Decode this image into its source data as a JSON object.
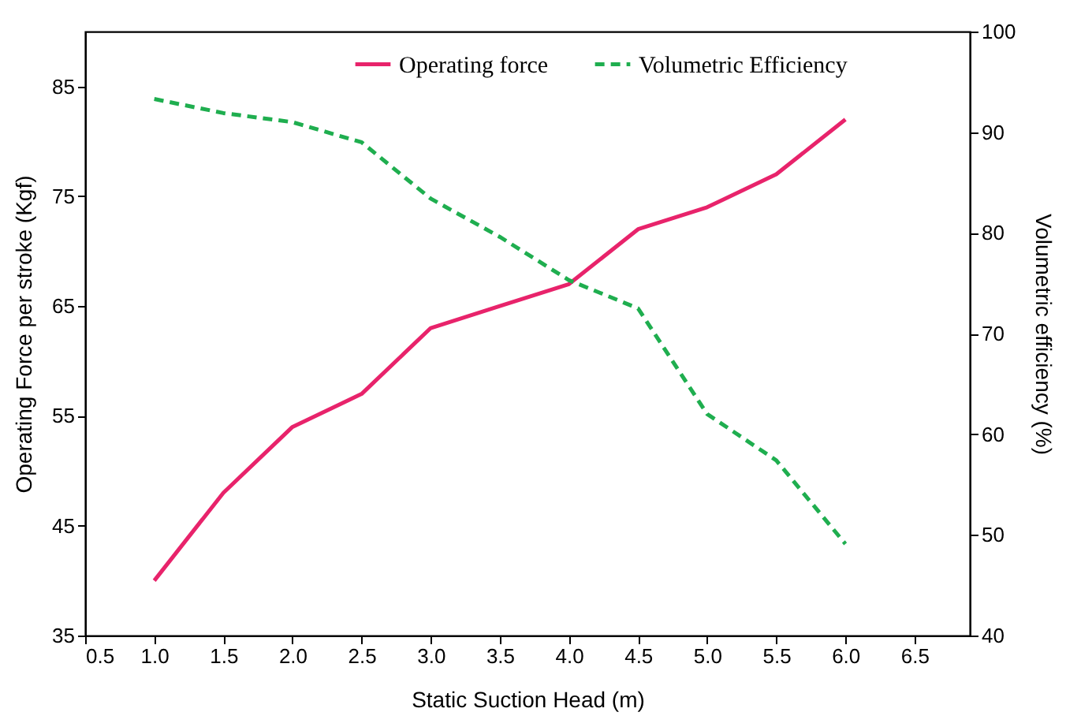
{
  "chart_data": {
    "type": "line",
    "xlabel": "Static Suction Head (m)",
    "ylabel": "Operating Force per stroke (Kgf)",
    "y2label": "Volumetric  efficiency (%)",
    "x": [
      1.0,
      1.5,
      2.0,
      2.5,
      3.0,
      3.5,
      4.0,
      4.5,
      5.0,
      5.5,
      6.0
    ],
    "series": [
      {
        "name": "Operating force",
        "color": "#e8236b",
        "line_style": "solid",
        "values": [
          40,
          48,
          54,
          57,
          63,
          65,
          67,
          72,
          74,
          77,
          82
        ]
      },
      {
        "name": "Volumetric Efficiency",
        "color": "#1fae4f",
        "line_style": "dashed",
        "axis": "y2",
        "values": [
          93.3,
          91.9,
          91,
          89,
          83.4,
          79.6,
          75.3,
          72.5,
          62,
          57.4,
          49.1
        ]
      }
    ],
    "xlim": [
      0.5,
      6.9
    ],
    "xticks": [
      0.5,
      {
        "value": 1,
        "label": "1.0"
      },
      1.5,
      {
        "value": 2,
        "label": "2.0"
      },
      2.5,
      {
        "value": 3,
        "label": "3.0"
      },
      3.5,
      {
        "value": 4,
        "label": "4.0"
      },
      4.5,
      {
        "value": 5,
        "label": "5.0"
      },
      5.5,
      {
        "value": 6,
        "label": "6.0"
      },
      6.5
    ],
    "ylim": [
      35,
      90
    ],
    "yticks": [
      35,
      45,
      55,
      65,
      75,
      85
    ],
    "y2lim": [
      40,
      100
    ],
    "y2ticks": [
      40,
      50,
      60,
      70,
      80,
      90,
      100
    ],
    "legend": "top"
  }
}
